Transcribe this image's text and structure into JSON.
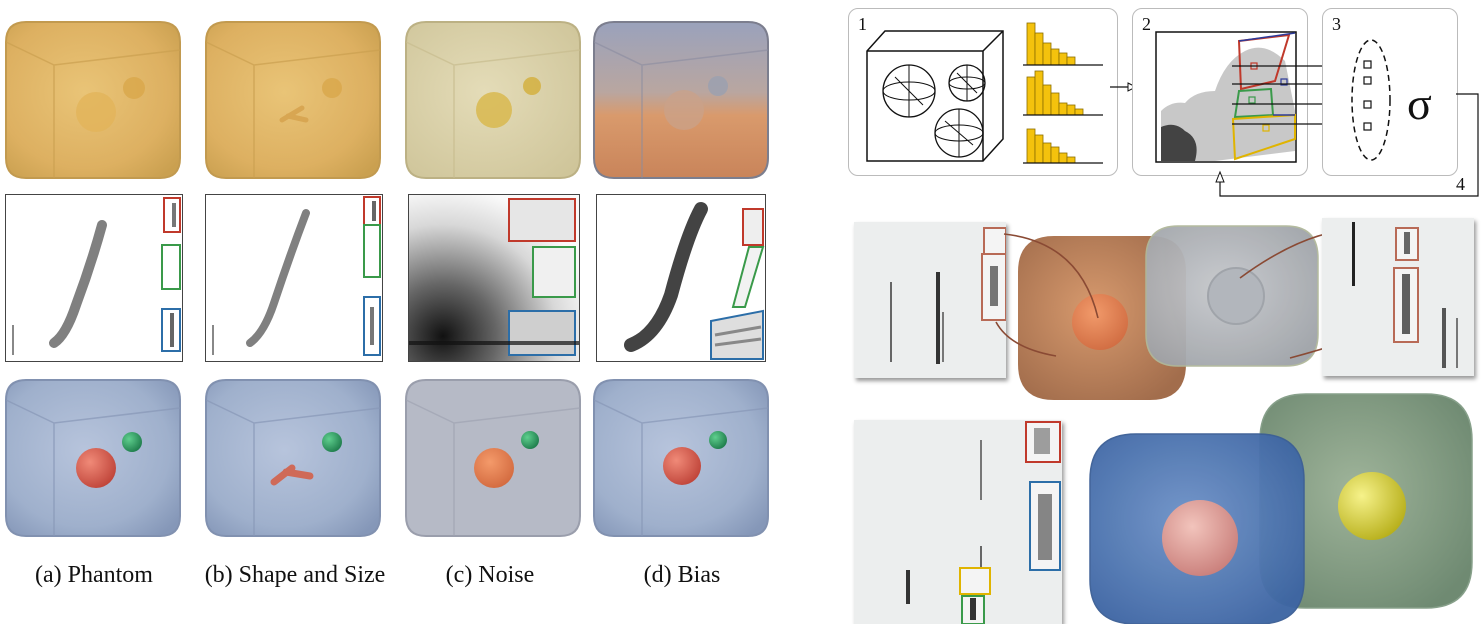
{
  "figure": {
    "captions": [
      {
        "label": "(a) Phantom"
      },
      {
        "label": "(b) Shape and Size"
      },
      {
        "label": "(c) Noise"
      },
      {
        "label": "(d) Bias"
      }
    ],
    "pipeline": {
      "steps": [
        "1",
        "2",
        "3",
        "4"
      ],
      "symbol": "σ"
    },
    "colors": {
      "volume_yellow": "#e6b75c",
      "volume_blue": "#9fb0cc",
      "sphere_red": "#d9584a",
      "sphere_green": "#2f9a63",
      "box_red": "#c0392b",
      "box_green": "#3a9a4a",
      "box_blue": "#2c6ea8",
      "box_yellow": "#e0b400"
    }
  }
}
